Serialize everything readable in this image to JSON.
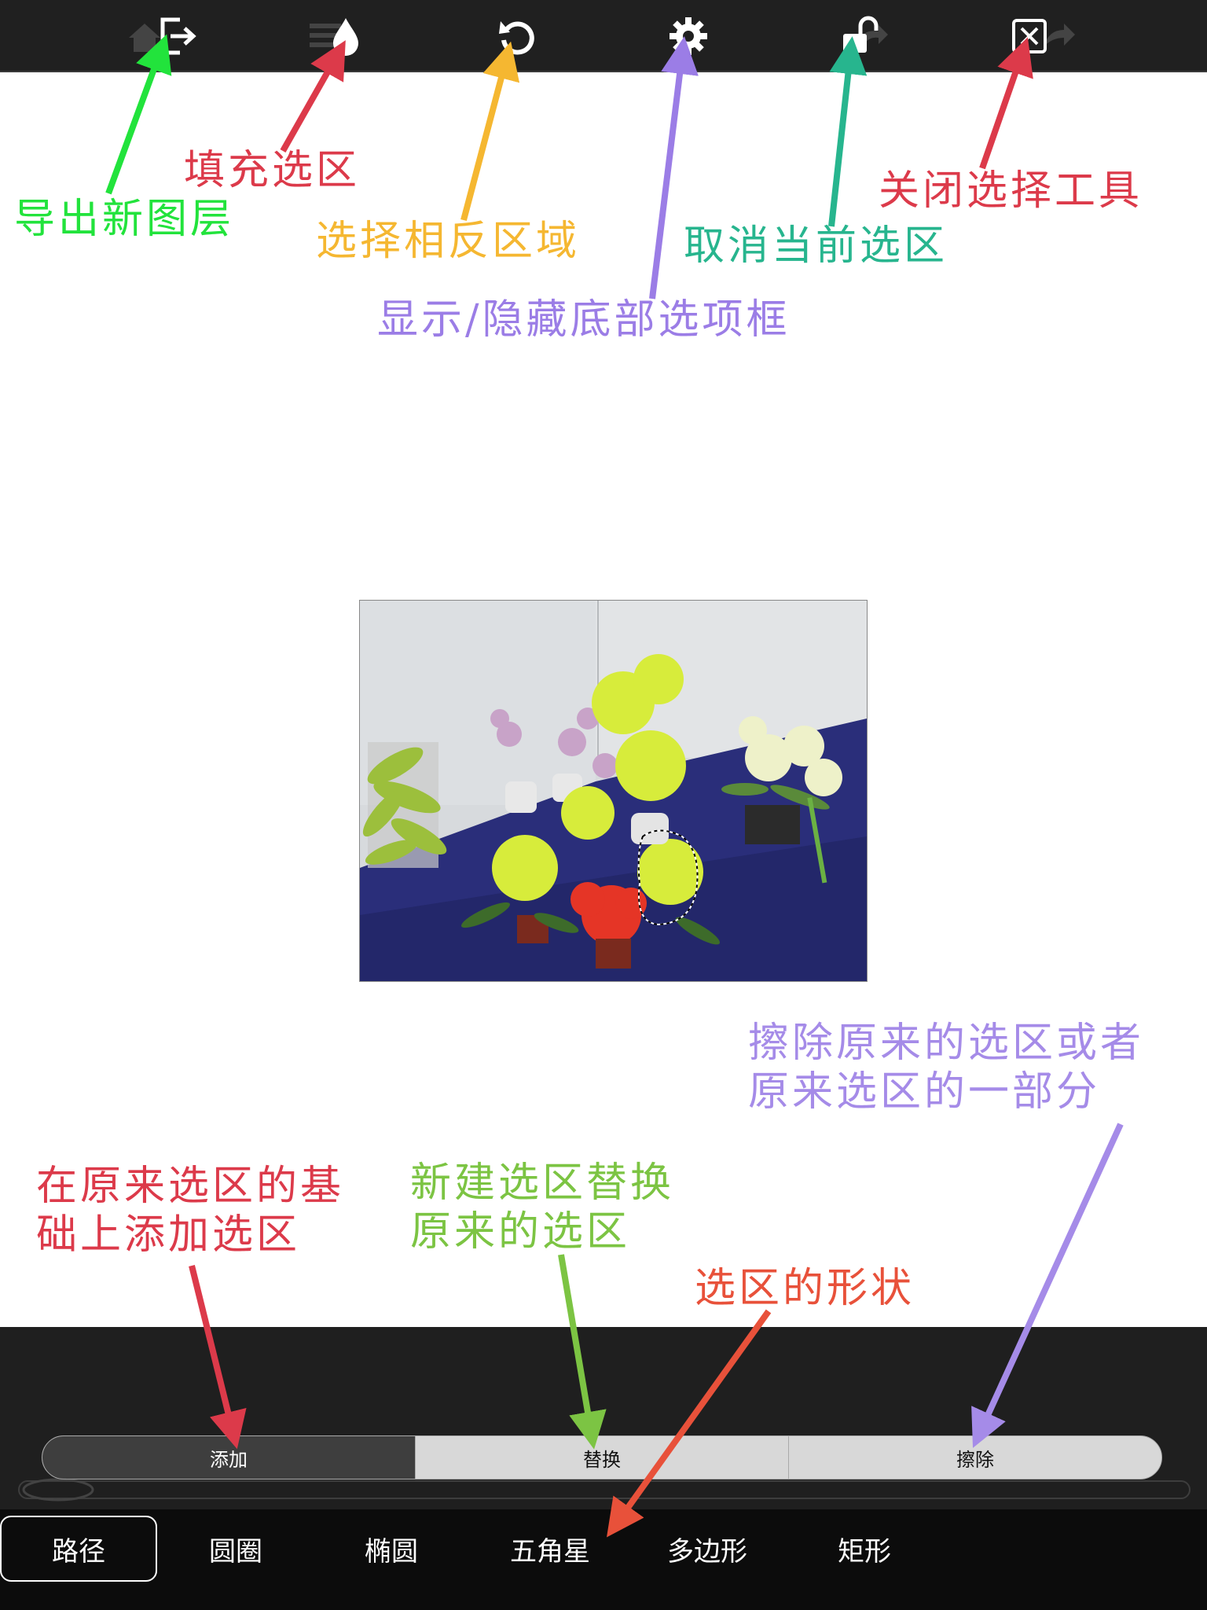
{
  "toolbar": {
    "buttons": [
      {
        "name": "export-layer",
        "icon": "export-icon"
      },
      {
        "name": "fill-selection",
        "icon": "droplet-icon"
      },
      {
        "name": "invert-selection",
        "icon": "undo-arrow-icon"
      },
      {
        "name": "settings",
        "icon": "gear-icon"
      },
      {
        "name": "deselect",
        "icon": "unlock-icon"
      },
      {
        "name": "close-tool",
        "icon": "close-box-icon"
      }
    ]
  },
  "annotations": {
    "export_layer": "导出新图层",
    "fill_selection": "填充选区",
    "invert_selection": "选择相反区域",
    "toggle_options": "显示/隐藏底部选项框",
    "cancel_selection": "取消当前选区",
    "close_tool": "关闭选择工具",
    "add_line1": "在原来选区的基",
    "add_line2": "础上添加选区",
    "replace_line1": "新建选区替换",
    "replace_line2": "原来的选区",
    "shape": "选区的形状",
    "erase_line1": "擦除原来的选区或者",
    "erase_line2": "原来选区的一部分"
  },
  "colors": {
    "green": "#22e33c",
    "red": "#dc3a4a",
    "yellow": "#f5b731",
    "purple": "#9b7de6",
    "teal": "#27b58e",
    "olive": "#7cc443",
    "orange": "#e8513a",
    "lavender": "#a58be8",
    "toolbar_bg": "#202020"
  },
  "mode_segment": {
    "items": [
      "添加",
      "替换",
      "擦除"
    ],
    "selected": "添加"
  },
  "shapes": {
    "items": [
      "路径",
      "圆圈",
      "椭圆",
      "五角星",
      "多边形",
      "矩形"
    ],
    "selected": "路径"
  }
}
